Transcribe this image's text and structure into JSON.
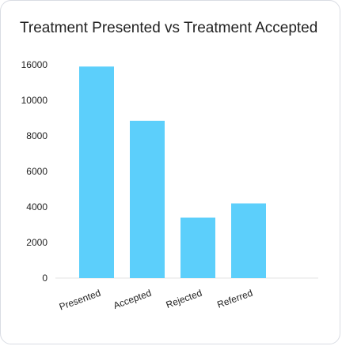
{
  "chart_data": {
    "type": "bar",
    "title": "Treatment Presented vs Treatment Accepted",
    "xlabel": "",
    "ylabel": "",
    "categories": [
      "Presented",
      "Accepted",
      "Rejected",
      "Referred"
    ],
    "values": [
      15700,
      8850,
      3400,
      4200
    ],
    "y_tick_labels": [
      "0",
      "2000",
      "4000",
      "6000",
      "8000",
      "10000",
      "16000"
    ],
    "ylim": [
      0,
      16000
    ],
    "grid": false,
    "legend": "none",
    "bar_color": "#5ccffb",
    "axis_color": "#e3e3e3"
  }
}
